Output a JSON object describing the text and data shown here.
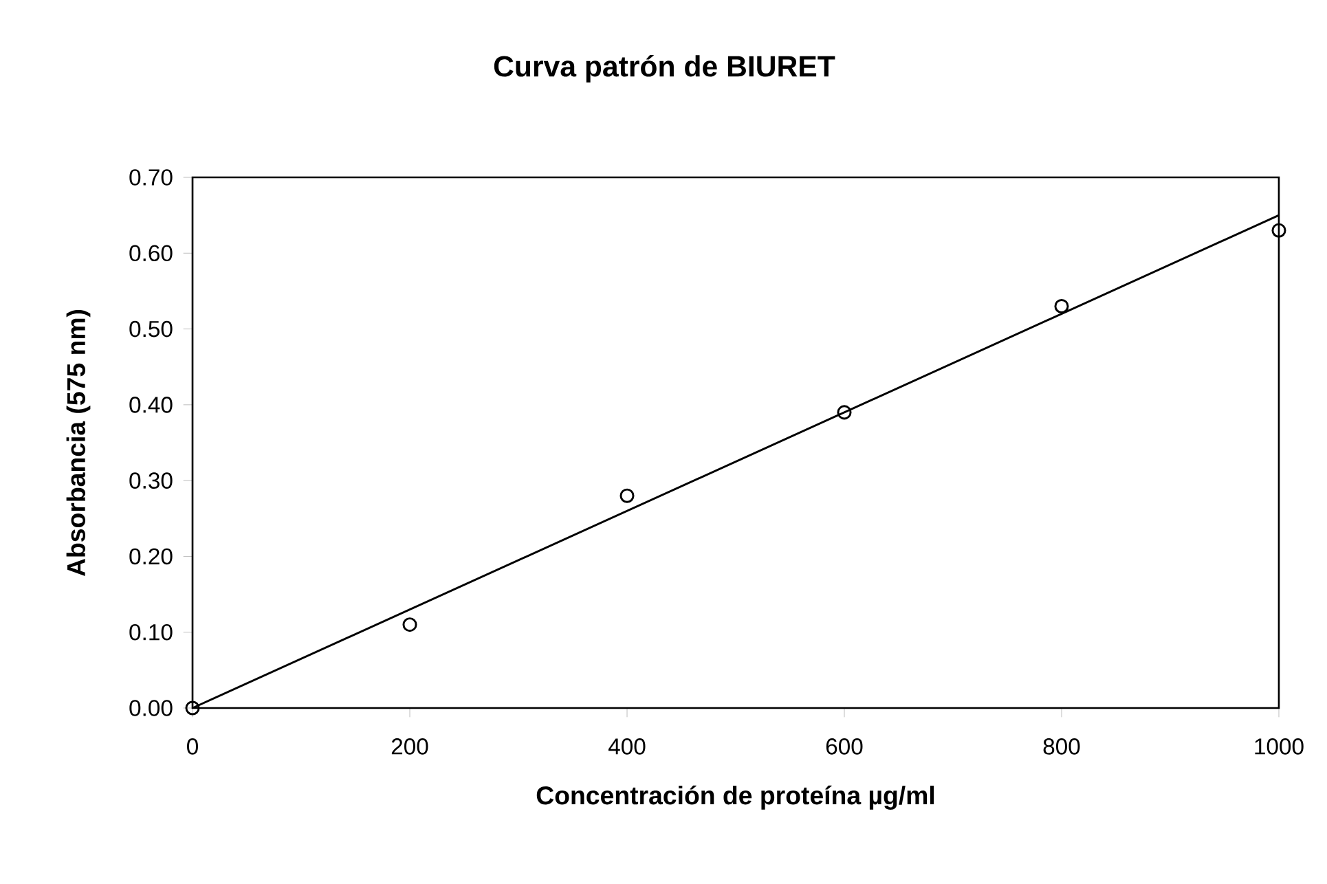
{
  "chart_data": {
    "type": "scatter",
    "title": "Curva patrón de BIURET",
    "xlabel": "Concentración de proteína µg/ml",
    "ylabel": "Absorbancia (575 nm)",
    "xlim": [
      0,
      1000
    ],
    "xticks": [
      0,
      200,
      400,
      600,
      800,
      1000
    ],
    "ylim": [
      0,
      0.7
    ],
    "yticks": [
      {
        "value": 0,
        "label": "0.00"
      },
      {
        "value": 0.1,
        "label": "0.10"
      },
      {
        "value": 0.2,
        "label": "0.20"
      },
      {
        "value": 0.3,
        "label": "0.30"
      },
      {
        "value": 0.4,
        "label": "0.40"
      },
      {
        "value": 0.5,
        "label": "0.50"
      },
      {
        "value": 0.6,
        "label": "0.60"
      },
      {
        "value": 0.7,
        "label": "0.70"
      }
    ],
    "grid": false,
    "series": [
      {
        "marker": "circle",
        "color": "#000000",
        "x": [
          0,
          200,
          400,
          600,
          800,
          1000
        ],
        "values": [
          0,
          0.11,
          0.28,
          0.39,
          0.53,
          0.63
        ]
      },
      {
        "type": "line",
        "marker": "none",
        "line_style": "solid",
        "color": "#000000",
        "x": [
          0,
          1000
        ],
        "values": [
          0,
          0.65
        ]
      }
    ]
  }
}
